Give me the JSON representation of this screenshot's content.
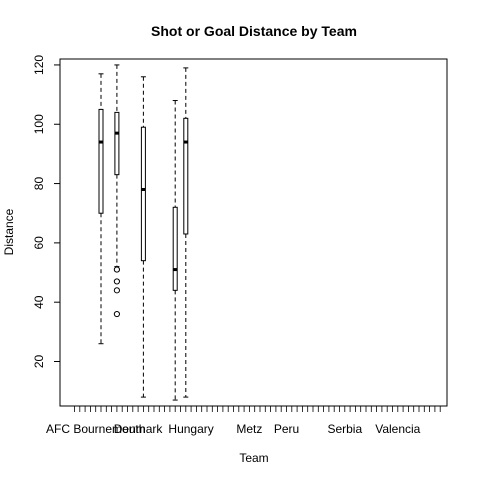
{
  "chart_data": {
    "type": "box",
    "title": "Shot or Goal Distance by Team",
    "xlabel": "Team",
    "ylabel": "Distance",
    "ylim": [
      5,
      122
    ],
    "yticks": [
      20,
      40,
      60,
      80,
      100,
      120
    ],
    "category_count": 70,
    "shown_tick_labels": [
      {
        "index": 5,
        "label": "AFC Bournemouth"
      },
      {
        "index": 13,
        "label": "Denmark"
      },
      {
        "index": 23,
        "label": "Hungary"
      },
      {
        "index": 34,
        "label": "Metz"
      },
      {
        "index": 41,
        "label": "Peru"
      },
      {
        "index": 52,
        "label": "Serbia"
      },
      {
        "index": 62,
        "label": "Valencia"
      }
    ],
    "boxes": [
      {
        "index": 6,
        "min": 26,
        "q1": 70,
        "median": 94,
        "q3": 105,
        "max": 117,
        "outliers": []
      },
      {
        "index": 9,
        "min": 52,
        "q1": 83,
        "median": 97,
        "q3": 104,
        "max": 120,
        "outliers": [
          36,
          44,
          47,
          51
        ]
      },
      {
        "index": 14,
        "min": 8,
        "q1": 54,
        "median": 78,
        "q3": 99,
        "max": 116,
        "outliers": []
      },
      {
        "index": 20,
        "min": 7,
        "q1": 44,
        "median": 51,
        "q3": 72,
        "max": 108,
        "outliers": []
      },
      {
        "index": 22,
        "min": 8,
        "q1": 63,
        "median": 94,
        "q3": 102,
        "max": 119,
        "outliers": []
      }
    ]
  }
}
